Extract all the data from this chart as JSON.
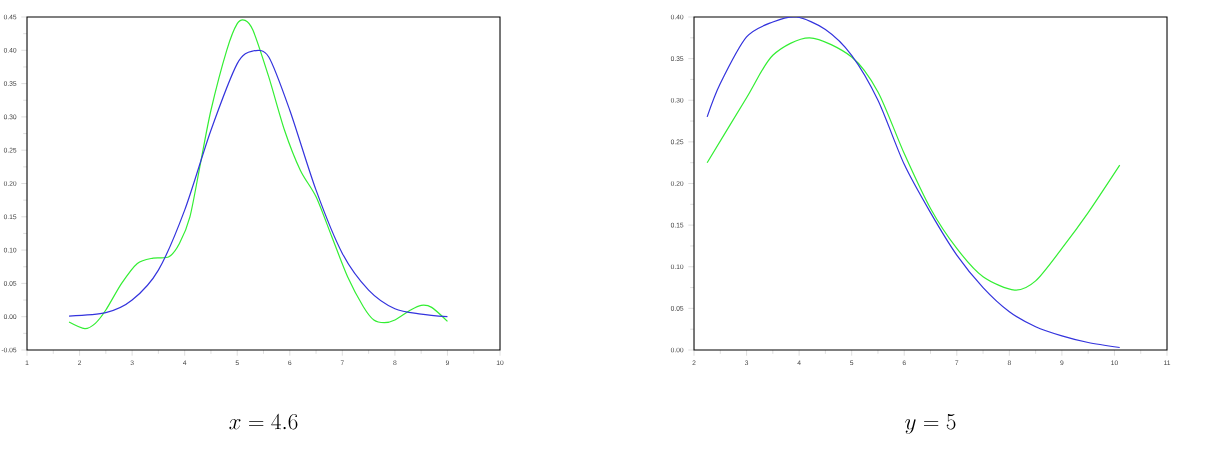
{
  "chart_data": [
    {
      "type": "line",
      "xlabel": "x = 4.6",
      "xlim": [
        1,
        10
      ],
      "ylim": [
        -0.05,
        0.45
      ],
      "xticks": [
        1,
        2,
        3,
        4,
        5,
        6,
        7,
        8,
        9,
        10
      ],
      "yticks": [
        {
          "value": -0.05,
          "label": "-0.05"
        },
        {
          "value": 0,
          "label": "0.00"
        },
        {
          "value": 0.05,
          "label": "0.05"
        },
        {
          "value": 0.1,
          "label": "0.10"
        },
        {
          "value": 0.15,
          "label": "0.15"
        },
        {
          "value": 0.2,
          "label": "0.20"
        },
        {
          "value": 0.25,
          "label": "0.25"
        },
        {
          "value": 0.3,
          "label": "0.30"
        },
        {
          "value": 0.35,
          "label": "0.35"
        },
        {
          "value": 0.4,
          "label": "0.40"
        },
        {
          "value": 0.45,
          "label": "0.45"
        }
      ],
      "series": [
        {
          "color": "#33ee33",
          "x": [
            1.8,
            2.1,
            2.3,
            2.5,
            2.8,
            3.1,
            3.4,
            3.7,
            3.9,
            4.1,
            4.3,
            4.5,
            4.8,
            5.0,
            5.15,
            5.3,
            5.6,
            5.9,
            6.2,
            6.5,
            6.8,
            7.1,
            7.4,
            7.6,
            7.8,
            8.0,
            8.3,
            8.5,
            8.7,
            9.0
          ],
          "values": [
            -0.008,
            -0.018,
            -0.01,
            0.01,
            0.05,
            0.08,
            0.088,
            0.09,
            0.11,
            0.15,
            0.23,
            0.31,
            0.4,
            0.44,
            0.445,
            0.43,
            0.36,
            0.28,
            0.22,
            0.18,
            0.12,
            0.06,
            0.015,
            -0.005,
            -0.009,
            -0.005,
            0.01,
            0.017,
            0.014,
            -0.007
          ]
        },
        {
          "color": "#3333dd",
          "x": [
            1.8,
            2.5,
            3.0,
            3.5,
            4.0,
            4.5,
            5.0,
            5.3,
            5.6,
            6.0,
            6.5,
            7.0,
            7.5,
            8.0,
            8.5,
            9.0
          ],
          "values": [
            0.001,
            0.006,
            0.025,
            0.07,
            0.16,
            0.28,
            0.38,
            0.399,
            0.39,
            0.31,
            0.19,
            0.095,
            0.04,
            0.012,
            0.004,
            0.0
          ]
        }
      ]
    },
    {
      "type": "line",
      "xlabel": "y = 5",
      "xlim": [
        2,
        11
      ],
      "ylim": [
        0,
        0.4
      ],
      "xticks": [
        2,
        3,
        4,
        5,
        6,
        7,
        8,
        9,
        10,
        11
      ],
      "yticks": [
        {
          "value": 0,
          "label": "0.00"
        },
        {
          "value": 0.05,
          "label": "0.05"
        },
        {
          "value": 0.1,
          "label": "0.10"
        },
        {
          "value": 0.15,
          "label": "0.15"
        },
        {
          "value": 0.2,
          "label": "0.20"
        },
        {
          "value": 0.25,
          "label": "0.25"
        },
        {
          "value": 0.3,
          "label": "0.30"
        },
        {
          "value": 0.35,
          "label": "0.35"
        },
        {
          "value": 0.4,
          "label": "0.40"
        }
      ],
      "series": [
        {
          "color": "#33ee33",
          "x": [
            2.25,
            3.0,
            3.5,
            4.2,
            5.0,
            5.5,
            6.0,
            6.5,
            7.0,
            7.5,
            8.1,
            8.5,
            9.0,
            9.5,
            10.1
          ],
          "values": [
            0.225,
            0.303,
            0.354,
            0.375,
            0.352,
            0.31,
            0.236,
            0.17,
            0.122,
            0.088,
            0.072,
            0.083,
            0.122,
            0.165,
            0.222
          ]
        },
        {
          "color": "#3333dd",
          "x": [
            2.25,
            2.5,
            3.0,
            3.5,
            3.95,
            4.5,
            5.0,
            5.5,
            6.0,
            6.5,
            7.0,
            7.5,
            8.0,
            8.5,
            9.0,
            9.5,
            10.1
          ],
          "values": [
            0.28,
            0.32,
            0.376,
            0.394,
            0.4,
            0.385,
            0.354,
            0.3,
            0.223,
            0.165,
            0.114,
            0.075,
            0.046,
            0.028,
            0.017,
            0.009,
            0.003
          ]
        }
      ]
    }
  ]
}
